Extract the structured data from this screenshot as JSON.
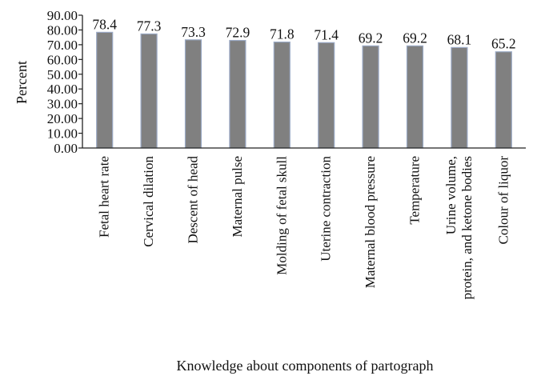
{
  "chart_data": {
    "type": "bar",
    "title": "",
    "xlabel": "Knowledge about components of partograph",
    "ylabel": "Percent",
    "ylim": [
      0,
      90
    ],
    "ytick_step": 10,
    "ytick_labels": [
      "0.00",
      "10.00",
      "20.00",
      "30.00",
      "40.00",
      "50.00",
      "60.00",
      "70.00",
      "80.00",
      "90.00"
    ],
    "grid": false,
    "legend": "none",
    "bar_color": "#808080",
    "bar_edge_color": "#9aa9c4",
    "categories": [
      [
        "Fetal heart rate"
      ],
      [
        "Cervical dilation"
      ],
      [
        "Descent of head"
      ],
      [
        "Maternal pulse"
      ],
      [
        "Molding of fetal skull"
      ],
      [
        "Uterine contraction"
      ],
      [
        "Maternal blood pressure"
      ],
      [
        "Temperature"
      ],
      [
        "Urine volume,",
        "protein, and ketone bodies"
      ],
      [
        "Colour of liquor"
      ]
    ],
    "values": [
      78.4,
      77.3,
      73.3,
      72.9,
      71.8,
      71.4,
      69.2,
      69.2,
      68.1,
      65.2
    ],
    "data_labels": [
      "78.4",
      "77.3",
      "73.3",
      "72.9",
      "71.8",
      "71.4",
      "69.2",
      "69.2",
      "68.1",
      "65.2"
    ]
  }
}
